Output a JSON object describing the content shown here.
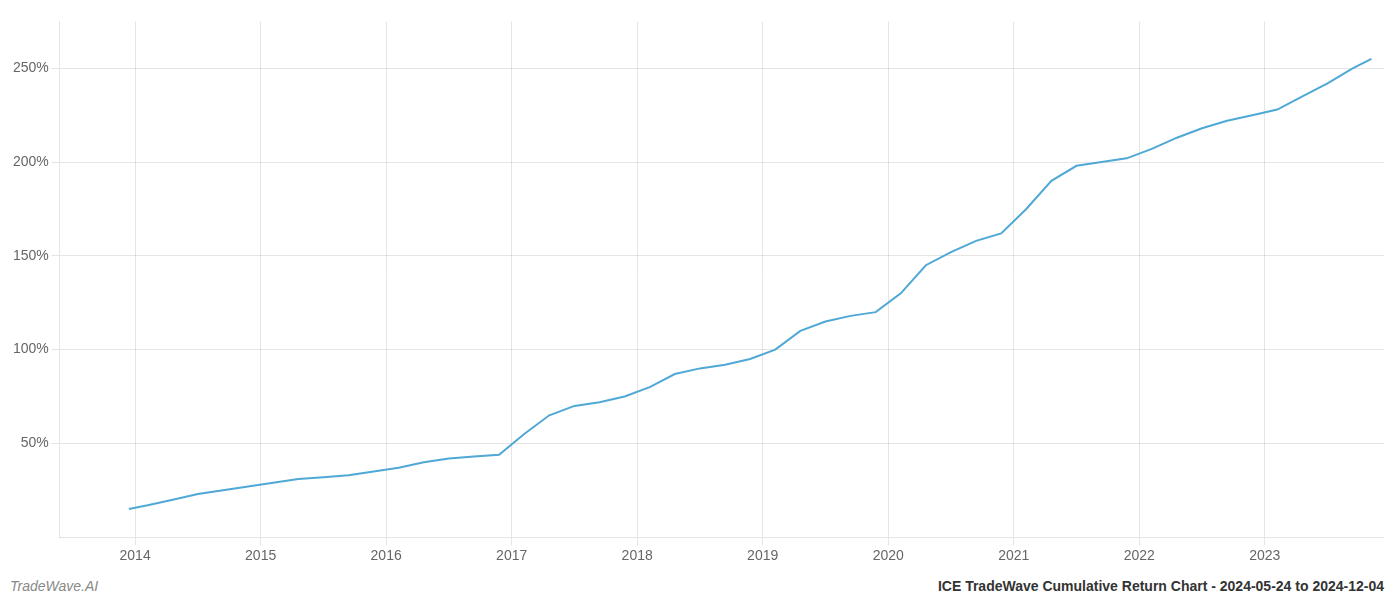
{
  "chart_data": {
    "type": "line",
    "x": [
      2013.95,
      2014.1,
      2014.3,
      2014.5,
      2014.7,
      2014.9,
      2015.1,
      2015.3,
      2015.5,
      2015.7,
      2015.9,
      2016.1,
      2016.3,
      2016.5,
      2016.7,
      2016.9,
      2017.1,
      2017.3,
      2017.5,
      2017.7,
      2017.9,
      2018.1,
      2018.3,
      2018.5,
      2018.7,
      2018.9,
      2019.1,
      2019.3,
      2019.5,
      2019.7,
      2019.9,
      2020.1,
      2020.3,
      2020.5,
      2020.7,
      2020.9,
      2021.1,
      2021.3,
      2021.5,
      2021.7,
      2021.9,
      2022.1,
      2022.3,
      2022.5,
      2022.7,
      2022.9,
      2023.1,
      2023.3,
      2023.5,
      2023.7,
      2023.85
    ],
    "values": [
      15,
      17,
      20,
      23,
      25,
      27,
      29,
      31,
      32,
      33,
      35,
      37,
      40,
      42,
      43,
      44,
      55,
      65,
      70,
      72,
      75,
      80,
      87,
      90,
      92,
      95,
      100,
      110,
      115,
      118,
      120,
      130,
      145,
      152,
      158,
      162,
      175,
      190,
      198,
      200,
      202,
      207,
      213,
      218,
      222,
      225,
      228,
      235,
      242,
      250,
      255
    ],
    "color": "#4fa8d5",
    "xlim": [
      2013.4,
      2023.95
    ],
    "xticks": [
      2014,
      2015,
      2016,
      2017,
      2018,
      2019,
      2020,
      2021,
      2022,
      2023
    ],
    "ylim": [
      0,
      275
    ],
    "yticks": [
      {
        "value": 50,
        "label": "50%"
      },
      {
        "value": 100,
        "label": "100%"
      },
      {
        "value": 150,
        "label": "150%"
      },
      {
        "value": 200,
        "label": "200%"
      },
      {
        "value": 250,
        "label": "250%"
      }
    ],
    "grid": true,
    "annotations": [
      "TradeWave.AI",
      "ICE TradeWave Cumulative Return Chart - 2024-05-24 to 2024-12-04"
    ]
  }
}
